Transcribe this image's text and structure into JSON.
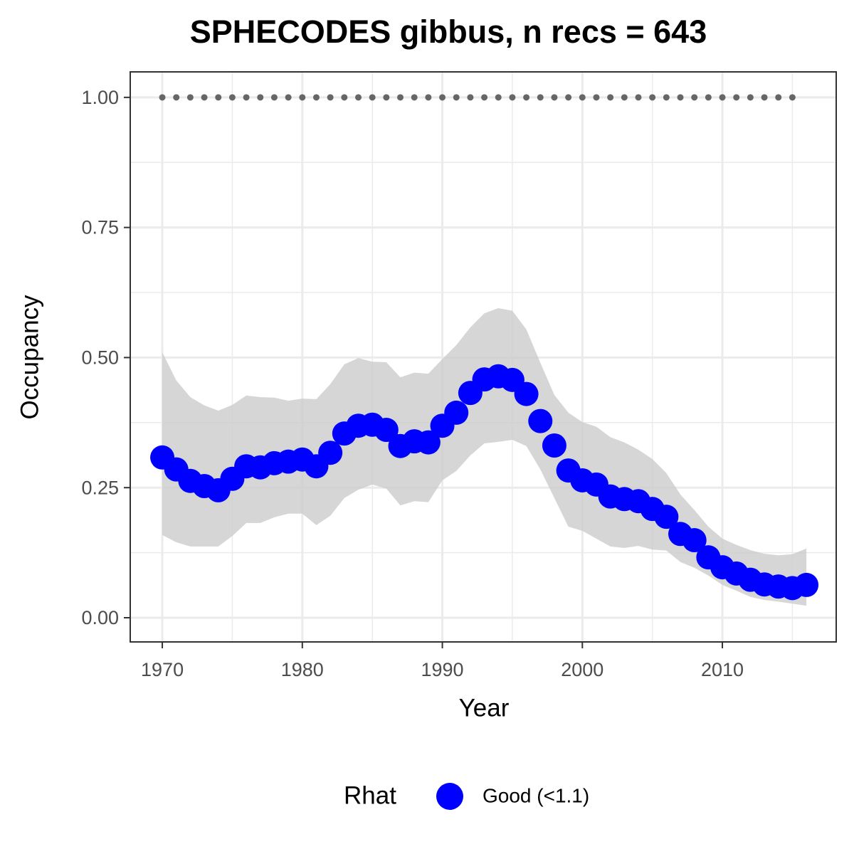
{
  "chart_data": {
    "type": "line",
    "title": "SPHECODES gibbus, n recs = 643",
    "x_label": "Year",
    "y_label": "Occupancy",
    "legend_title": "Rhat",
    "x": [
      1970,
      1971,
      1972,
      1973,
      1974,
      1975,
      1976,
      1977,
      1978,
      1979,
      1980,
      1981,
      1982,
      1983,
      1984,
      1985,
      1986,
      1987,
      1988,
      1989,
      1990,
      1991,
      1992,
      1993,
      1994,
      1995,
      1996,
      1997,
      1998,
      1999,
      2000,
      2001,
      2002,
      2003,
      2004,
      2005,
      2006,
      2007,
      2008,
      2009,
      2010,
      2011,
      2012,
      2013,
      2014,
      2015,
      2016
    ],
    "series": [
      {
        "name": "Good (<1.1)",
        "color": "#0000ff",
        "values": [
          0.308,
          0.285,
          0.263,
          0.253,
          0.245,
          0.267,
          0.291,
          0.289,
          0.297,
          0.3,
          0.304,
          0.291,
          0.317,
          0.354,
          0.369,
          0.371,
          0.361,
          0.33,
          0.339,
          0.337,
          0.369,
          0.394,
          0.432,
          0.458,
          0.464,
          0.457,
          0.43,
          0.378,
          0.331,
          0.283,
          0.264,
          0.256,
          0.233,
          0.228,
          0.224,
          0.209,
          0.194,
          0.161,
          0.149,
          0.116,
          0.097,
          0.085,
          0.073,
          0.064,
          0.06,
          0.057,
          0.063
        ]
      }
    ],
    "band": {
      "color": "#cccccc",
      "upper": [
        0.51,
        0.456,
        0.424,
        0.408,
        0.398,
        0.409,
        0.427,
        0.424,
        0.423,
        0.417,
        0.421,
        0.42,
        0.449,
        0.487,
        0.499,
        0.492,
        0.491,
        0.462,
        0.471,
        0.469,
        0.497,
        0.524,
        0.558,
        0.585,
        0.595,
        0.59,
        0.554,
        0.49,
        0.428,
        0.394,
        0.376,
        0.367,
        0.347,
        0.337,
        0.323,
        0.305,
        0.278,
        0.237,
        0.207,
        0.175,
        0.152,
        0.14,
        0.13,
        0.123,
        0.12,
        0.122,
        0.133
      ],
      "lower": [
        0.159,
        0.145,
        0.137,
        0.137,
        0.137,
        0.157,
        0.182,
        0.182,
        0.193,
        0.2,
        0.2,
        0.178,
        0.196,
        0.23,
        0.246,
        0.256,
        0.248,
        0.216,
        0.224,
        0.222,
        0.264,
        0.282,
        0.312,
        0.335,
        0.338,
        0.342,
        0.33,
        0.285,
        0.23,
        0.175,
        0.167,
        0.152,
        0.137,
        0.134,
        0.138,
        0.131,
        0.129,
        0.107,
        0.096,
        0.081,
        0.063,
        0.052,
        0.04,
        0.034,
        0.031,
        0.027,
        0.023
      ]
    },
    "dots": {
      "color": "#666666",
      "x": [
        1970,
        1971,
        1972,
        1973,
        1974,
        1975,
        1976,
        1977,
        1978,
        1979,
        1980,
        1981,
        1982,
        1983,
        1984,
        1985,
        1986,
        1987,
        1988,
        1989,
        1990,
        1991,
        1992,
        1993,
        1994,
        1995,
        1996,
        1997,
        1998,
        1999,
        2000,
        2001,
        2002,
        2003,
        2004,
        2005,
        2006,
        2007,
        2008,
        2009,
        2010,
        2011,
        2012,
        2013,
        2014,
        2015
      ],
      "values": [
        1,
        1,
        1,
        1,
        1,
        1,
        1,
        1,
        1,
        1,
        1,
        1,
        1,
        1,
        1,
        1,
        1,
        1,
        1,
        1,
        1,
        1,
        1,
        1,
        1,
        1,
        1,
        1,
        1,
        1,
        1,
        1,
        1,
        1,
        1,
        1,
        1,
        1,
        1,
        1,
        1,
        1,
        1,
        1,
        1,
        1
      ]
    },
    "xlim": [
      1967.71,
      2018.13
    ],
    "ylim": [
      -0.0465,
      1.049
    ],
    "xticks": [
      1970,
      1980,
      1990,
      2000,
      2010
    ],
    "yticks": [
      {
        "value": 0,
        "label": "0.00"
      },
      {
        "value": 0.25,
        "label": "0.25"
      },
      {
        "value": 0.5,
        "label": "0.50"
      },
      {
        "value": 0.75,
        "label": "0.75"
      },
      {
        "value": 1,
        "label": "1.00"
      }
    ],
    "xminor": [
      1975,
      1985,
      1995,
      2005,
      2015
    ],
    "yminor": [
      0.125,
      0.375,
      0.625,
      0.875
    ],
    "grid": true
  }
}
